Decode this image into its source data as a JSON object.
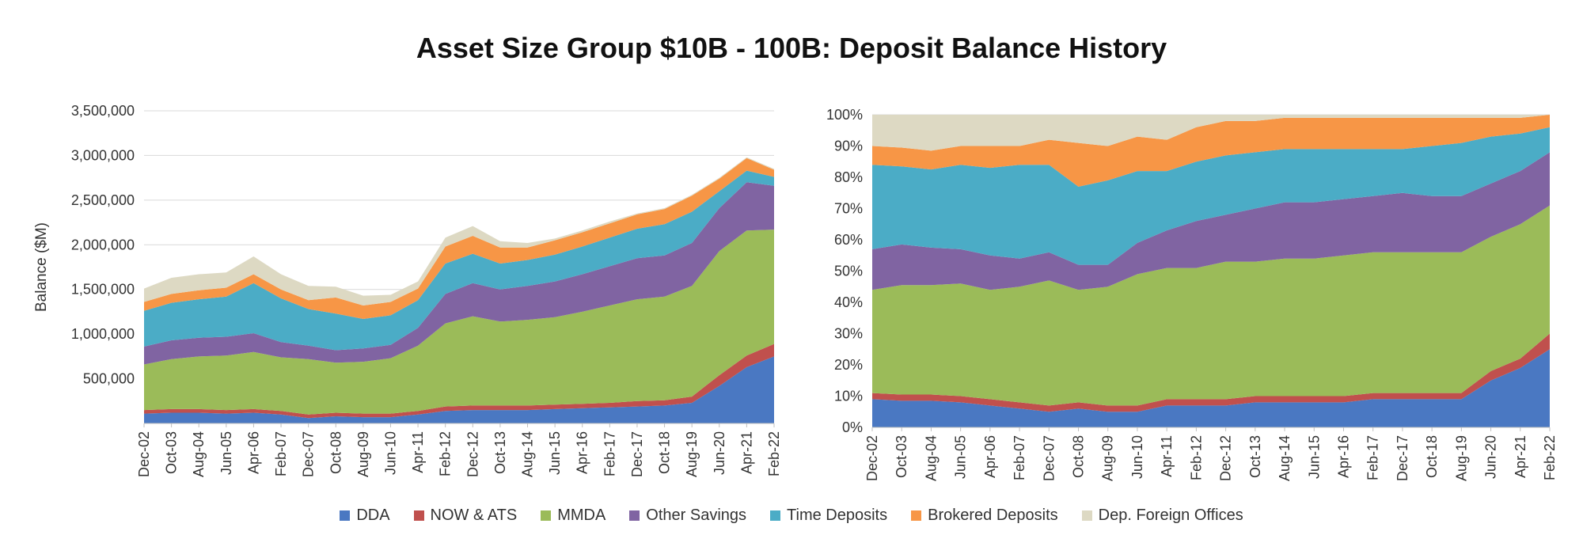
{
  "title": "Asset Size Group $10B - 100B: Deposit Balance History",
  "chart_data": [
    {
      "type": "area",
      "stacked": true,
      "ylabel": "Balance ($M)",
      "ylim": [
        0,
        3500000
      ],
      "yticks": [
        500000,
        1000000,
        1500000,
        2000000,
        2500000,
        3000000,
        3500000
      ],
      "ytick_labels": [
        "500,000",
        "1,000,000",
        "1,500,000",
        "2,000,000",
        "2,500,000",
        "3,000,000",
        "3,500,000"
      ],
      "grid": true,
      "x": [
        "Dec-02",
        "Oct-03",
        "Aug-04",
        "Jun-05",
        "Apr-06",
        "Feb-07",
        "Dec-07",
        "Oct-08",
        "Aug-09",
        "Jun-10",
        "Apr-11",
        "Feb-12",
        "Dec-12",
        "Oct-13",
        "Aug-14",
        "Jun-15",
        "Apr-16",
        "Feb-17",
        "Dec-17",
        "Oct-18",
        "Aug-19",
        "Jun-20",
        "Apr-21",
        "Feb-22"
      ],
      "series": [
        {
          "name": "DDA",
          "values": [
            110000,
            120000,
            120000,
            110000,
            120000,
            100000,
            60000,
            80000,
            70000,
            70000,
            100000,
            140000,
            150000,
            150000,
            150000,
            160000,
            170000,
            180000,
            190000,
            200000,
            230000,
            420000,
            630000,
            750000
          ]
        },
        {
          "name": "NOW & ATS",
          "values": [
            40000,
            40000,
            40000,
            40000,
            40000,
            40000,
            40000,
            40000,
            40000,
            40000,
            40000,
            50000,
            50000,
            50000,
            50000,
            50000,
            50000,
            50000,
            60000,
            60000,
            70000,
            120000,
            130000,
            140000
          ]
        },
        {
          "name": "MMDA",
          "values": [
            510000,
            560000,
            590000,
            610000,
            640000,
            600000,
            620000,
            560000,
            580000,
            620000,
            730000,
            930000,
            1000000,
            940000,
            960000,
            980000,
            1030000,
            1090000,
            1140000,
            1160000,
            1240000,
            1390000,
            1400000,
            1280000
          ]
        },
        {
          "name": "Other Savings",
          "values": [
            200000,
            210000,
            210000,
            210000,
            210000,
            170000,
            150000,
            140000,
            150000,
            150000,
            200000,
            330000,
            370000,
            360000,
            380000,
            400000,
            420000,
            440000,
            460000,
            460000,
            480000,
            480000,
            540000,
            490000
          ]
        },
        {
          "name": "Time Deposits",
          "values": [
            400000,
            420000,
            430000,
            450000,
            560000,
            490000,
            410000,
            410000,
            330000,
            330000,
            310000,
            340000,
            330000,
            290000,
            290000,
            300000,
            310000,
            320000,
            330000,
            350000,
            350000,
            190000,
            130000,
            100000
          ]
        },
        {
          "name": "Brokered Deposits",
          "values": [
            100000,
            100000,
            100000,
            100000,
            100000,
            100000,
            100000,
            180000,
            150000,
            150000,
            130000,
            190000,
            200000,
            180000,
            140000,
            160000,
            160000,
            160000,
            160000,
            170000,
            180000,
            140000,
            140000,
            80000
          ]
        },
        {
          "name": "Dep. Foreign Offices",
          "values": [
            150000,
            180000,
            180000,
            170000,
            200000,
            170000,
            160000,
            120000,
            110000,
            80000,
            80000,
            100000,
            110000,
            70000,
            50000,
            20000,
            20000,
            20000,
            10000,
            10000,
            10000,
            10000,
            10000,
            10000
          ]
        }
      ]
    },
    {
      "type": "area",
      "stacked": true,
      "percent": true,
      "ylim": [
        0,
        100
      ],
      "yticks": [
        0,
        10,
        20,
        30,
        40,
        50,
        60,
        70,
        80,
        90,
        100
      ],
      "ytick_labels": [
        "0%",
        "10%",
        "20%",
        "30%",
        "40%",
        "50%",
        "60%",
        "70%",
        "80%",
        "90%",
        "100%"
      ],
      "grid": true,
      "x": [
        "Dec-02",
        "Oct-03",
        "Aug-04",
        "Jun-05",
        "Apr-06",
        "Feb-07",
        "Dec-07",
        "Oct-08",
        "Aug-09",
        "Jun-10",
        "Apr-11",
        "Feb-12",
        "Dec-12",
        "Oct-13",
        "Aug-14",
        "Jun-15",
        "Apr-16",
        "Feb-17",
        "Dec-17",
        "Oct-18",
        "Aug-19",
        "Jun-20",
        "Apr-21",
        "Feb-22"
      ],
      "series": [
        {
          "name": "DDA",
          "values": [
            9,
            8.5,
            8.5,
            8,
            7,
            6,
            5,
            6,
            5,
            5,
            7,
            7,
            7,
            8,
            8,
            8,
            8,
            9,
            9,
            9,
            9,
            15,
            19,
            25
          ]
        },
        {
          "name": "NOW & ATS",
          "values": [
            2,
            2,
            2,
            2,
            2,
            2,
            2,
            2,
            2,
            2,
            2,
            2,
            2,
            2,
            2,
            2,
            2,
            2,
            2,
            2,
            2,
            3,
            3,
            5
          ]
        },
        {
          "name": "MMDA",
          "values": [
            33,
            35,
            35,
            36,
            35,
            37,
            40,
            36,
            38,
            42,
            42,
            42,
            44,
            43,
            44,
            44,
            45,
            45,
            45,
            45,
            45,
            43,
            43,
            41
          ]
        },
        {
          "name": "Other Savings",
          "values": [
            13,
            13,
            12,
            11,
            11,
            9,
            9,
            8,
            7,
            10,
            12,
            15,
            15,
            17,
            18,
            18,
            18,
            18,
            19,
            18,
            18,
            17,
            17,
            17
          ]
        },
        {
          "name": "Time Deposits",
          "values": [
            27,
            25,
            25,
            27,
            28,
            30,
            28,
            25,
            27,
            23,
            19,
            19,
            19,
            18,
            17,
            17,
            16,
            15,
            14,
            16,
            17,
            15,
            12,
            8
          ]
        },
        {
          "name": "Brokered Deposits",
          "values": [
            6,
            6,
            6,
            6,
            7,
            6,
            8,
            14,
            11,
            11,
            10,
            11,
            11,
            10,
            10,
            10,
            10,
            10,
            10,
            9,
            8,
            6,
            5,
            4
          ]
        },
        {
          "name": "Dep. Foreign Offices",
          "values": [
            10,
            10.5,
            11.5,
            10,
            10,
            10,
            8,
            9,
            10,
            7,
            8,
            4,
            2,
            2,
            1,
            1,
            1,
            1,
            1,
            1,
            1,
            1,
            1,
            0
          ]
        }
      ]
    }
  ],
  "legend": [
    {
      "name": "DDA",
      "color": "#4a78c2"
    },
    {
      "name": "NOW & ATS",
      "color": "#c0504d"
    },
    {
      "name": "MMDA",
      "color": "#9bbb59"
    },
    {
      "name": "Other Savings",
      "color": "#8064a2"
    },
    {
      "name": "Time Deposits",
      "color": "#4bacc6"
    },
    {
      "name": "Brokered Deposits",
      "color": "#f79646"
    },
    {
      "name": "Dep. Foreign Offices",
      "color": "#ddd9c3"
    }
  ]
}
